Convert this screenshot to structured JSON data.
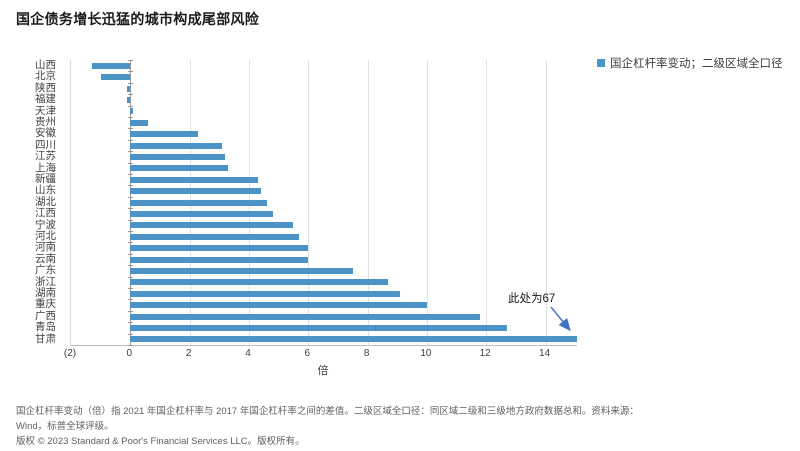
{
  "title": "国企债务增长迅猛的城市构成尾部风险",
  "legend": {
    "label": "国企杠杆率变动；二级区域全口径",
    "marker_color": "#4b94c5"
  },
  "chart_data": {
    "type": "bar",
    "orientation": "horizontal",
    "title": "国企债务增长迅猛的城市构成尾部风险",
    "categories": [
      "山西",
      "北京",
      "陕西",
      "福建",
      "天津",
      "贵州",
      "安徽",
      "四川",
      "江苏",
      "上海",
      "新疆",
      "山东",
      "湖北",
      "江西",
      "宁波",
      "河北",
      "河南",
      "云南",
      "广东",
      "浙江",
      "湖南",
      "重庆",
      "广西",
      "青岛",
      "甘肃"
    ],
    "values": [
      -1.3,
      -1.0,
      -0.1,
      -0.1,
      0.1,
      0.6,
      2.3,
      3.1,
      3.2,
      3.3,
      4.3,
      4.4,
      4.6,
      4.8,
      5.5,
      5.7,
      6.0,
      6.0,
      7.5,
      8.7,
      9.1,
      10.0,
      11.8,
      12.7,
      67
    ],
    "series_name": "国企杠杆率变动；二级区域全口径",
    "xlabel": "倍",
    "x_ticks": [
      "(2)",
      "0",
      "2",
      "4",
      "6",
      "8",
      "10",
      "12",
      "14"
    ],
    "x_tick_values": [
      -2,
      0,
      2,
      4,
      6,
      8,
      10,
      12,
      14
    ],
    "xlim": [
      -2,
      15.06
    ],
    "grid": true,
    "legend_position": "right",
    "bar_color": "#4b94c5",
    "annotation": {
      "text": "此处为67",
      "target_category": "甘肃",
      "actual_value": 67,
      "note": "bar clipped at axis maximum",
      "arrow_color": "#4472c4"
    }
  },
  "footnotes": {
    "line1": "国企杠杆率变动（倍）指 2021 年国企杠杆率与 2017 年国企杠杆率之间的差值。二级区域全口径：同区域二级和三级地方政府数据总和。资料来源：",
    "line2": "Wind，标普全球评级。"
  },
  "copyright": "版权 © 2023 Standard & Poor's Financial Services LLC。版权所有。",
  "colors": {
    "bar": "#4b94c5",
    "annotation_arrow": "#4472c4",
    "gridline": "#e0e0e0",
    "axis": "#9a9a9a",
    "footnote_text": "#5f5f5f"
  }
}
